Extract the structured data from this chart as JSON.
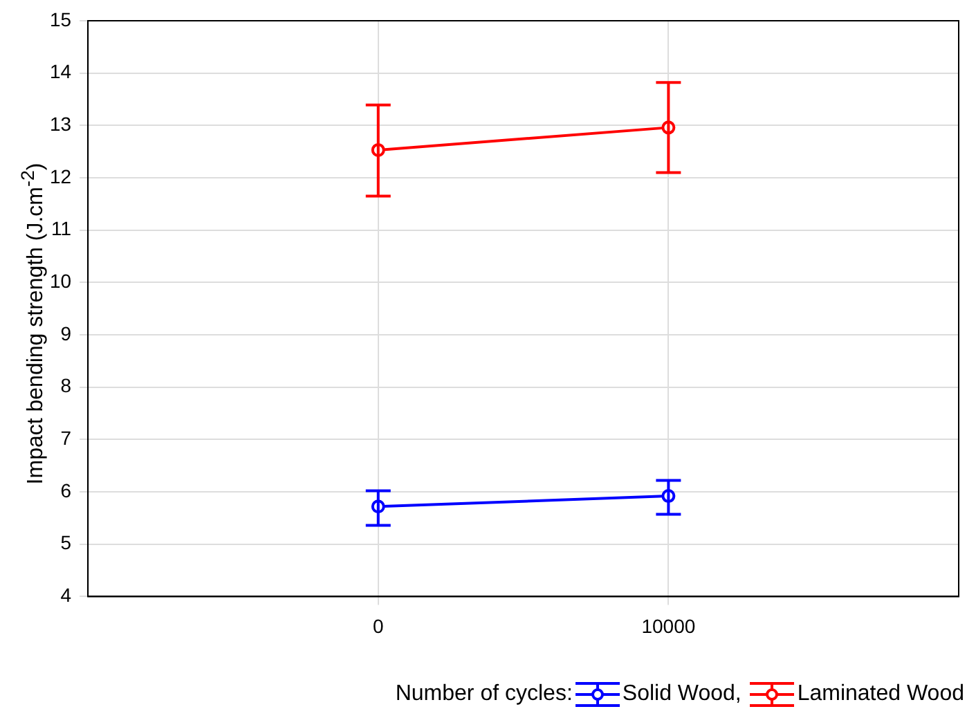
{
  "chart_data": {
    "type": "line",
    "xlabel": null,
    "ylabel": "Impact bending strength (J.cm$^{-2}$)",
    "legend_title": "Number of cycles:",
    "categories": [
      "0",
      "10000"
    ],
    "series": [
      {
        "name": "Solid Wood,",
        "color": "#0000ff",
        "values": [
          5.72,
          5.92
        ],
        "errors": [
          [
            5.36,
            6.02
          ],
          [
            5.57,
            6.22
          ]
        ]
      },
      {
        "name": "Laminated Wood",
        "color": "#ff0000",
        "values": [
          12.53,
          12.96
        ],
        "errors": [
          [
            11.65,
            13.39
          ],
          [
            12.1,
            13.82
          ]
        ]
      }
    ],
    "ylim": [
      4,
      15
    ],
    "yticks": [
      4,
      5,
      6,
      7,
      8,
      9,
      10,
      11,
      12,
      13,
      14,
      15
    ],
    "grid": true,
    "legend": "bottom",
    "marker": "circle",
    "line_style": "solid"
  }
}
